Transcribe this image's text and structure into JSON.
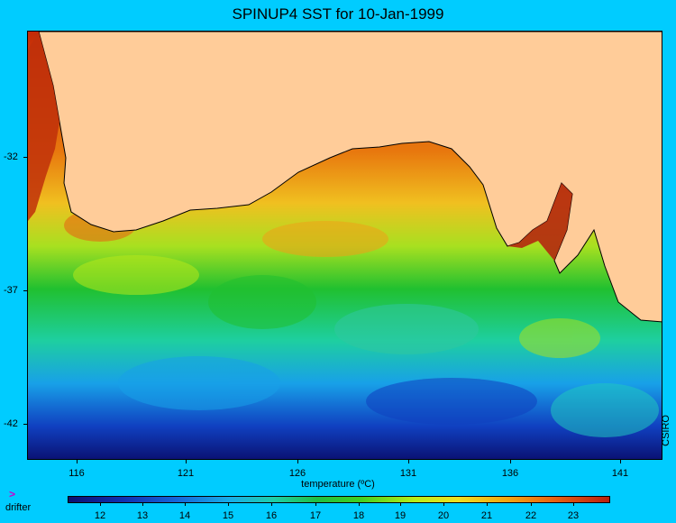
{
  "title": "SPINUP4 SST for 10-Jan-1999",
  "lat_labels": [
    "-32",
    "-37",
    "-42"
  ],
  "lon_labels": [
    "116",
    "121",
    "126",
    "131",
    "136",
    "141"
  ],
  "credit": "CSIRO",
  "colorbar": {
    "label": "temperature (ºC)",
    "ticks": [
      "12",
      "13",
      "14",
      "15",
      "16",
      "17",
      "18",
      "19",
      "20",
      "21",
      "22",
      "23"
    ]
  },
  "legend": {
    "drifter_symbol": ">",
    "drifter_label": "drifter"
  },
  "colors": {
    "background": "#00ccff",
    "land": "#ffcc99",
    "warm": "#e06010",
    "cold": "#0a1070"
  }
}
